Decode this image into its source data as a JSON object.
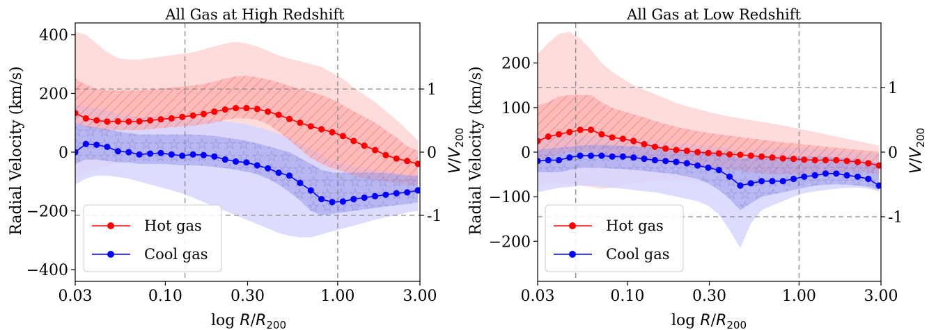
{
  "chart_data": [
    {
      "type": "line",
      "title": "All Gas at High Redshift",
      "xlabel": "log R/R200",
      "ylabel": "Radial Velocity (km/s)",
      "y2label": "V/V200",
      "xscale": "log",
      "xlim": [
        0.03,
        3.0
      ],
      "ylim": [
        -440,
        440
      ],
      "xticks": [
        0.03,
        0.1,
        0.3,
        1.0,
        3.0
      ],
      "xtick_labels": [
        "0.03",
        "0.10",
        "0.30",
        "1.00",
        "3.00"
      ],
      "yticks": [
        -400,
        -200,
        0,
        200,
        400
      ],
      "ytick_labels": [
        "−400",
        "−200",
        "0",
        "200",
        "400"
      ],
      "y2ticks": [
        -1,
        0,
        1
      ],
      "y2tick_labels": [
        "-1",
        "0",
        "1"
      ],
      "v200": 215,
      "vlines": [
        0.13,
        1.0
      ],
      "legend_loc": "lower-left",
      "colors": {
        "hot": "#ff0000",
        "cool": "#0000ff",
        "hot_outer": "#ffd6d6",
        "hot_inner": "#ff9f9f",
        "cool_outer": "#d6d6ff",
        "cool_inner": "#9a9ae8"
      },
      "x": [
        0.03,
        0.0346,
        0.0399,
        0.046,
        0.0531,
        0.0613,
        0.0707,
        0.0816,
        0.0941,
        0.1086,
        0.1253,
        0.1446,
        0.1668,
        0.1925,
        0.2221,
        0.2563,
        0.2957,
        0.3412,
        0.3937,
        0.4543,
        0.5242,
        0.6048,
        0.6979,
        0.8053,
        0.9292,
        1.0721,
        1.2371,
        1.4274,
        1.6471,
        1.9005,
        2.1929,
        2.5302,
        2.9196
      ],
      "series": [
        {
          "name": "Hot gas",
          "values": [
            133,
            115,
            108,
            104,
            105,
            104,
            105,
            108,
            112,
            115,
            120,
            125,
            130,
            138,
            145,
            150,
            150,
            147,
            138,
            127,
            113,
            100,
            88,
            78,
            68,
            55,
            38,
            22,
            7,
            -10,
            -22,
            -30,
            -40
          ],
          "p25": [
            100,
            85,
            78,
            75,
            75,
            75,
            75,
            78,
            82,
            85,
            88,
            90,
            95,
            100,
            110,
            115,
            115,
            110,
            95,
            70,
            40,
            10,
            -20,
            -40,
            -55,
            -65,
            -80,
            -90,
            -95,
            -100,
            -105,
            -110,
            -115
          ],
          "p75": [
            250,
            230,
            215,
            210,
            210,
            210,
            210,
            213,
            217,
            220,
            223,
            227,
            232,
            240,
            250,
            258,
            260,
            255,
            247,
            238,
            225,
            215,
            205,
            195,
            180,
            160,
            140,
            120,
            100,
            75,
            50,
            20,
            5
          ],
          "p05": [
            -90,
            -70,
            -55,
            -45,
            -40,
            -35,
            -30,
            -28,
            -25,
            -25,
            -25,
            -25,
            -25,
            -30,
            -40,
            -50,
            -60,
            -75,
            -95,
            -115,
            -140,
            -155,
            -165,
            -170,
            -175,
            -180,
            -180,
            -180,
            -175,
            -170,
            -165,
            -155,
            -150
          ],
          "p95": [
            410,
            400,
            370,
            340,
            320,
            315,
            315,
            320,
            325,
            330,
            335,
            340,
            350,
            360,
            370,
            375,
            370,
            360,
            345,
            330,
            318,
            310,
            300,
            290,
            270,
            250,
            220,
            195,
            170,
            140,
            110,
            75,
            40
          ]
        },
        {
          "name": "Cool gas",
          "values": [
            0,
            28,
            25,
            18,
            3,
            0,
            -8,
            -5,
            -3,
            -8,
            -12,
            -8,
            -10,
            -15,
            -25,
            -32,
            -35,
            -45,
            -55,
            -70,
            -80,
            -105,
            -130,
            -160,
            -170,
            -168,
            -160,
            -155,
            -150,
            -145,
            -140,
            -137,
            -130
          ],
          "p25": [
            -40,
            -25,
            -25,
            -30,
            -35,
            -35,
            -40,
            -40,
            -40,
            -42,
            -45,
            -45,
            -47,
            -50,
            -55,
            -60,
            -67,
            -75,
            -90,
            -110,
            -135,
            -165,
            -200,
            -215,
            -210,
            -205,
            -200,
            -195,
            -190,
            -185,
            -180,
            -177,
            -170
          ],
          "p75": [
            100,
            90,
            85,
            78,
            70,
            65,
            60,
            60,
            60,
            60,
            60,
            60,
            58,
            55,
            50,
            45,
            38,
            30,
            20,
            10,
            0,
            -20,
            -40,
            -60,
            -70,
            -70,
            -70,
            -70,
            -70,
            -72,
            -75,
            -80,
            -80
          ],
          "p05": [
            -110,
            -90,
            -80,
            -80,
            -85,
            -90,
            -100,
            -110,
            -120,
            -130,
            -140,
            -155,
            -170,
            -185,
            -200,
            -215,
            -230,
            -245,
            -260,
            -275,
            -285,
            -290,
            -290,
            -280,
            -270,
            -260,
            -250,
            -240,
            -230,
            -222,
            -215,
            -205,
            -200
          ],
          "p95": [
            160,
            155,
            150,
            140,
            130,
            125,
            120,
            120,
            120,
            120,
            120,
            115,
            112,
            110,
            105,
            100,
            95,
            85,
            75,
            62,
            50,
            30,
            10,
            -10,
            -30,
            -40,
            -50,
            -55,
            -60,
            -65,
            -70,
            -75,
            -78
          ]
        }
      ]
    },
    {
      "type": "line",
      "title": "All Gas at Low Redshift",
      "xlabel": "log R/R200",
      "ylabel": "Radial Velocity (km/s)",
      "y2label": "V/V200",
      "xscale": "log",
      "xlim": [
        0.03,
        3.0
      ],
      "ylim": [
        -290,
        290
      ],
      "xticks": [
        0.03,
        0.1,
        0.3,
        1.0,
        3.0
      ],
      "xtick_labels": [
        "0.03",
        "0.10",
        "0.30",
        "1.00",
        "3.00"
      ],
      "yticks": [
        -200,
        -100,
        0,
        100,
        200
      ],
      "ytick_labels": [
        "−200",
        "−100",
        "0",
        "100",
        "200"
      ],
      "y2ticks": [
        -1,
        0,
        1
      ],
      "y2tick_labels": [
        "-1",
        "0",
        "1"
      ],
      "v200": 145,
      "vlines": [
        0.05,
        1.0
      ],
      "legend_loc": "lower-left",
      "colors": {
        "hot": "#ff0000",
        "cool": "#0000ff",
        "hot_outer": "#ffd6d6",
        "hot_inner": "#ff9f9f",
        "cool_outer": "#d6d6ff",
        "cool_inner": "#9a9ae8"
      },
      "x": [
        0.03,
        0.0346,
        0.0399,
        0.046,
        0.0531,
        0.0613,
        0.0707,
        0.0816,
        0.0941,
        0.1086,
        0.1253,
        0.1446,
        0.1668,
        0.1925,
        0.2221,
        0.2563,
        0.2957,
        0.3412,
        0.3937,
        0.4543,
        0.5242,
        0.6048,
        0.6979,
        0.8053,
        0.9292,
        1.0721,
        1.2371,
        1.4274,
        1.6471,
        1.9005,
        2.1929,
        2.5302,
        2.9196
      ],
      "series": [
        {
          "name": "Hot gas",
          "values": [
            25,
            35,
            40,
            45,
            50,
            50,
            40,
            33,
            30,
            25,
            18,
            12,
            8,
            5,
            3,
            0,
            -2,
            -3,
            -5,
            -6,
            -8,
            -10,
            -12,
            -14,
            -15,
            -17,
            -18,
            -18,
            -18,
            -20,
            -22,
            -25,
            -30
          ],
          "p25": [
            -20,
            -10,
            -5,
            0,
            0,
            0,
            -5,
            -10,
            -12,
            -15,
            -18,
            -22,
            -25,
            -28,
            -30,
            -32,
            -35,
            -37,
            -40,
            -42,
            -45,
            -47,
            -50,
            -50,
            -50,
            -50,
            -48,
            -46,
            -45,
            -44,
            -44,
            -45,
            -50
          ],
          "p75": [
            105,
            112,
            125,
            128,
            128,
            128,
            112,
            100,
            92,
            85,
            78,
            70,
            63,
            57,
            52,
            47,
            43,
            40,
            37,
            34,
            31,
            28,
            25,
            22,
            20,
            17,
            15,
            12,
            10,
            8,
            5,
            3,
            0
          ],
          "p05": [
            -75,
            -70,
            -70,
            -72,
            -75,
            -78,
            -82,
            -80,
            -75,
            -70,
            -68,
            -65,
            -65,
            -65,
            -65,
            -67,
            -68,
            -70,
            -72,
            -74,
            -75,
            -78,
            -78,
            -76,
            -74,
            -72,
            -70,
            -68,
            -66,
            -64,
            -62,
            -60,
            -58
          ],
          "p95": [
            220,
            245,
            265,
            270,
            255,
            230,
            200,
            180,
            165,
            150,
            140,
            130,
            120,
            110,
            103,
            97,
            90,
            85,
            80,
            76,
            72,
            68,
            64,
            60,
            55,
            50,
            45,
            40,
            35,
            30,
            25,
            20,
            15
          ]
        },
        {
          "name": "Cool gas",
          "values": [
            -20,
            -18,
            -18,
            -12,
            -8,
            -8,
            -8,
            -10,
            -10,
            -12,
            -15,
            -18,
            -20,
            -22,
            -25,
            -30,
            -35,
            -40,
            -55,
            -75,
            -70,
            -65,
            -65,
            -65,
            -60,
            -55,
            -52,
            -48,
            -48,
            -52,
            -55,
            -60,
            -75
          ],
          "p25": [
            -45,
            -45,
            -45,
            -40,
            -35,
            -35,
            -35,
            -37,
            -38,
            -40,
            -42,
            -45,
            -47,
            -50,
            -55,
            -60,
            -70,
            -85,
            -105,
            -130,
            -115,
            -100,
            -95,
            -90,
            -85,
            -80,
            -75,
            -73,
            -72,
            -73,
            -75,
            -78,
            -85
          ],
          "p75": [
            5,
            8,
            10,
            12,
            15,
            16,
            16,
            15,
            14,
            13,
            12,
            10,
            8,
            6,
            5,
            3,
            2,
            0,
            -5,
            -15,
            -12,
            -10,
            -10,
            -10,
            -10,
            -10,
            -10,
            -10,
            -12,
            -15,
            -18,
            -20,
            -25
          ],
          "p05": [
            -90,
            -85,
            -80,
            -78,
            -75,
            -75,
            -78,
            -80,
            -82,
            -85,
            -88,
            -90,
            -95,
            -100,
            -105,
            -110,
            -120,
            -140,
            -175,
            -215,
            -160,
            -130,
            -120,
            -110,
            -100,
            -92,
            -88,
            -85,
            -82,
            -80,
            -80,
            -82,
            -88
          ],
          "p95": [
            40,
            42,
            42,
            40,
            38,
            36,
            34,
            32,
            30,
            28,
            26,
            24,
            22,
            20,
            18,
            16,
            14,
            12,
            8,
            2,
            5,
            8,
            10,
            10,
            10,
            10,
            8,
            5,
            3,
            2,
            0,
            -2,
            -5
          ]
        }
      ]
    }
  ]
}
